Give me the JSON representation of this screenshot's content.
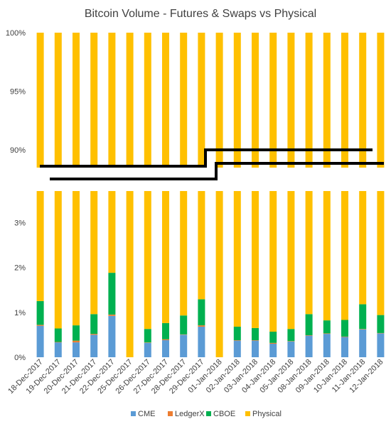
{
  "chart_data": {
    "type": "bar",
    "stacked": true,
    "title": "Bitcoin Volume - Futures & Swaps vs Physical",
    "categories": [
      "18-Dec-2017",
      "19-Dec-2017",
      "20-Dec-2017",
      "21-Dec-2017",
      "22-Dec-2017",
      "25-Dec-2017",
      "26-Dec-2017",
      "27-Dec-2017",
      "28-Dec-2017",
      "29-Dec-2017",
      "01-Jan-2018",
      "02-Jan-2018",
      "03-Jan-2018",
      "04-Jan-2018",
      "05-Jan-2018",
      "08-Jan-2018",
      "09-Jan-2018",
      "10-Jan-2018",
      "11-Jan-2018",
      "12-Jan-2018"
    ],
    "series": [
      {
        "name": "CME",
        "color": "#5B9BD5",
        "values": [
          0.7,
          0.33,
          0.33,
          0.5,
          0.92,
          0,
          0.32,
          0.38,
          0.5,
          0.68,
          0,
          0.37,
          0.37,
          0.3,
          0.35,
          0.48,
          0.52,
          0.45,
          0.62,
          0.53
        ]
      },
      {
        "name": "LedgerX",
        "color": "#ED7D31",
        "values": [
          0.02,
          0.01,
          0.04,
          0.02,
          0.03,
          0,
          0.01,
          0.02,
          0.01,
          0.03,
          0,
          0.01,
          0.01,
          0.02,
          0.01,
          0.01,
          0.01,
          0.01,
          0.01,
          0.01
        ]
      },
      {
        "name": "CBOE",
        "color": "#00B050",
        "values": [
          0.53,
          0.3,
          0.34,
          0.44,
          0.93,
          0,
          0.3,
          0.36,
          0.42,
          0.58,
          0,
          0.3,
          0.27,
          0.25,
          0.27,
          0.47,
          0.29,
          0.37,
          0.55,
          0.4
        ]
      },
      {
        "name": "Physical",
        "color": "#FFC000",
        "values": [
          98.75,
          99.36,
          99.29,
          99.04,
          98.12,
          100,
          99.37,
          99.24,
          99.07,
          98.71,
          100,
          99.32,
          99.35,
          99.43,
          99.37,
          99.04,
          99.18,
          99.17,
          98.82,
          99.06
        ]
      }
    ],
    "axis_break": true,
    "upper_panel": {
      "ylim": [
        88.5,
        100
      ],
      "ticks": [
        90,
        95,
        100
      ],
      "tick_labels": [
        "90%",
        "95%",
        "100%"
      ]
    },
    "lower_panel": {
      "ylim": [
        0,
        3.7
      ],
      "ticks": [
        0,
        1,
        2,
        3
      ],
      "tick_labels": [
        "0%",
        "1%",
        "2%",
        "3%"
      ]
    },
    "legend_position": "bottom",
    "grid": false
  }
}
